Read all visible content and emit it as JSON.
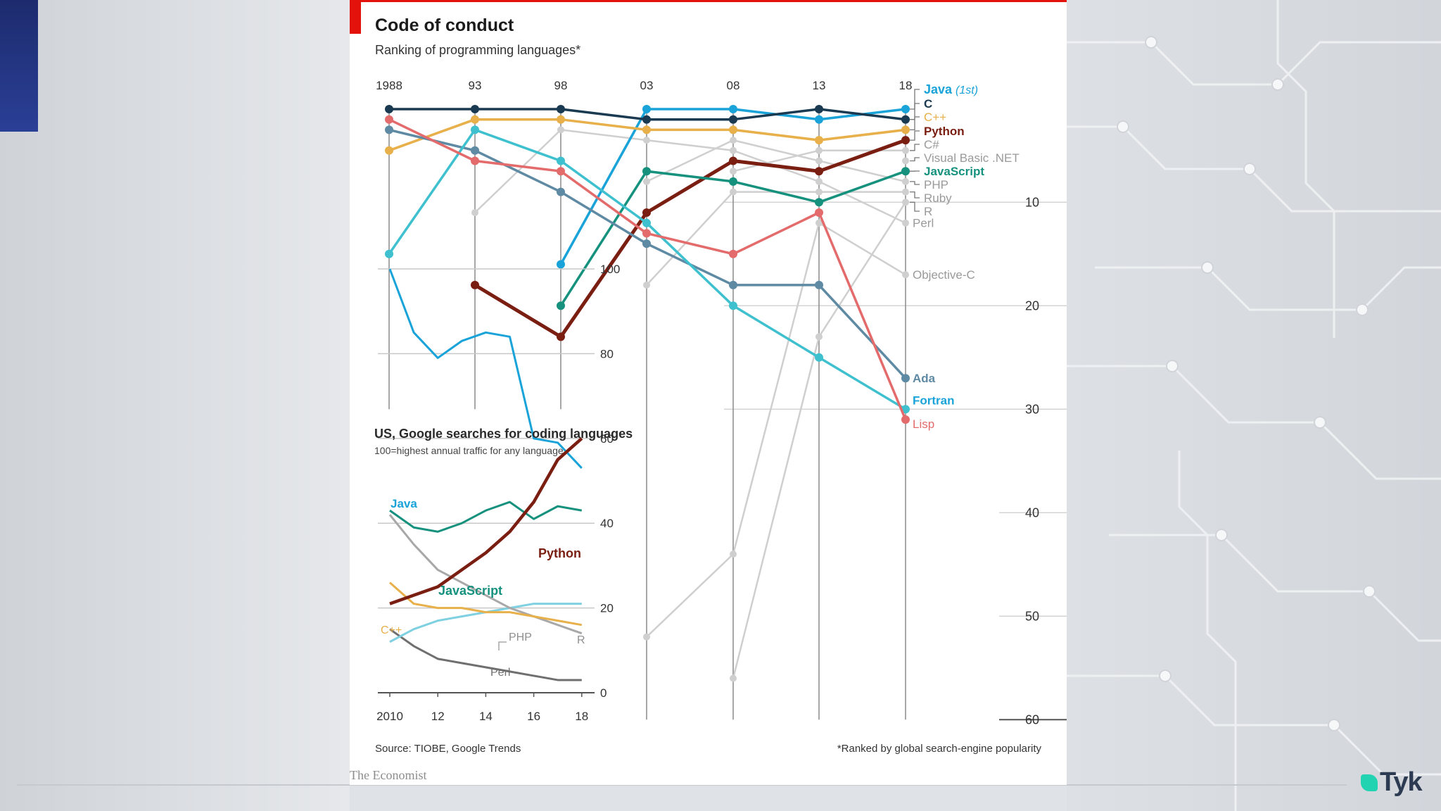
{
  "slide": {
    "brand": {
      "logo_text": "Tyk",
      "mark_color": "#22d3b2",
      "text_color": "#2c3a52"
    },
    "accent_color": "#1d2b6e",
    "background": "circuit-board pattern, light grey"
  },
  "chart_data": [
    {
      "type": "line",
      "title": "Code of conduct",
      "subtitle": "Ranking of programming languages*",
      "x": [
        1988,
        1993,
        1998,
        2003,
        2008,
        2013,
        2018
      ],
      "x_tick_labels": [
        "1988",
        "93",
        "98",
        "03",
        "08",
        "13",
        "18"
      ],
      "y_axis": {
        "reversed": true,
        "ticks": [
          10,
          20,
          30,
          40,
          50,
          60
        ],
        "range": [
          1,
          60
        ],
        "position": "right"
      },
      "grid": true,
      "series": [
        {
          "name": "Java (1st)",
          "color": "#1aa3d8",
          "values": [
            null,
            null,
            16,
            1,
            1,
            2,
            1
          ]
        },
        {
          "name": "C",
          "color": "#1a3a52",
          "values": [
            1,
            1,
            1,
            2,
            2,
            1,
            2
          ]
        },
        {
          "name": "C++",
          "color": "#e8b04a",
          "values": [
            5,
            2,
            2,
            3,
            3,
            4,
            3
          ]
        },
        {
          "name": "Python",
          "color": "#7a1e12",
          "values": [
            null,
            18,
            23,
            11,
            6,
            7,
            4
          ]
        },
        {
          "name": "C#",
          "color": "#cfcfcf",
          "values": [
            null,
            null,
            null,
            null,
            7,
            5,
            5
          ]
        },
        {
          "name": "Visual Basic .NET",
          "color": "#cfcfcf",
          "values": [
            null,
            null,
            null,
            null,
            null,
            null,
            6
          ]
        },
        {
          "name": "JavaScript",
          "color": "#16917e",
          "values": [
            null,
            null,
            20,
            7,
            8,
            10,
            7
          ]
        },
        {
          "name": "PHP",
          "color": "#cfcfcf",
          "values": [
            null,
            null,
            null,
            8,
            4,
            6,
            8
          ]
        },
        {
          "name": "Ruby",
          "color": "#cfcfcf",
          "values": [
            null,
            null,
            null,
            18,
            9,
            9,
            9
          ]
        },
        {
          "name": "R",
          "color": "#cfcfcf",
          "values": [
            null,
            null,
            null,
            null,
            56,
            23,
            10
          ]
        },
        {
          "name": "Perl",
          "color": "#cfcfcf",
          "values": [
            null,
            11,
            3,
            4,
            5,
            8,
            12
          ]
        },
        {
          "name": "Objective-C",
          "color": "#cfcfcf",
          "values": [
            null,
            null,
            null,
            52,
            44,
            12,
            17
          ]
        },
        {
          "name": "Ada",
          "color": "#5f8aa3",
          "values": [
            3,
            5,
            9,
            14,
            18,
            18,
            27
          ]
        },
        {
          "name": "Fortran",
          "color": "#3fc0cf",
          "values": [
            15,
            3,
            6,
            12,
            20,
            25,
            30
          ]
        },
        {
          "name": "Lisp",
          "color": "#e36b6b",
          "values": [
            2,
            6,
            7,
            13,
            15,
            11,
            31
          ]
        }
      ],
      "footnote": "*Ranked by global search-engine popularity"
    },
    {
      "type": "line",
      "title": "US, Google searches for coding languages",
      "subtitle": "100=highest annual traffic for any language",
      "x": [
        2010,
        2011,
        2012,
        2013,
        2014,
        2015,
        2016,
        2017,
        2018
      ],
      "x_tick_labels": [
        "2010",
        "12",
        "14",
        "16",
        "18"
      ],
      "y_axis": {
        "ticks": [
          0,
          20,
          40,
          60,
          80,
          100
        ],
        "range": [
          0,
          100
        ],
        "position": "right"
      },
      "grid": true,
      "series": [
        {
          "name": "Java",
          "color": "#1aa3d8",
          "values": [
            100,
            85,
            79,
            83,
            85,
            84,
            60,
            59,
            53
          ]
        },
        {
          "name": "Python",
          "color": "#7a1e12",
          "values": [
            21,
            23,
            25,
            29,
            33,
            38,
            45,
            55,
            60
          ]
        },
        {
          "name": "JavaScript",
          "color": "#16917e",
          "values": [
            43,
            39,
            38,
            40,
            43,
            45,
            41,
            44,
            43
          ]
        },
        {
          "name": "C++",
          "color": "#e8b04a",
          "values": [
            26,
            21,
            20,
            20,
            19,
            19,
            18,
            17,
            16
          ]
        },
        {
          "name": "PHP",
          "color": "#a8a8a8",
          "values": [
            42,
            35,
            29,
            26,
            23,
            20,
            18,
            16,
            14
          ]
        },
        {
          "name": "R",
          "color": "#7fd0e0",
          "values": [
            12,
            15,
            17,
            18,
            19,
            20,
            21,
            21,
            21
          ]
        },
        {
          "name": "Perl",
          "color": "#6f6f6f",
          "values": [
            15,
            11,
            8,
            7,
            6,
            5,
            4,
            3,
            3
          ]
        }
      ]
    }
  ],
  "source": "Source: TIOBE, Google Trends",
  "publisher": "The Economist"
}
